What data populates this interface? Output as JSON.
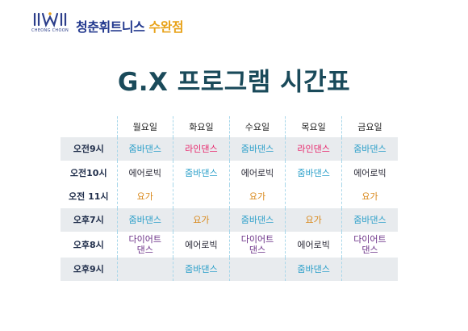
{
  "brand": {
    "logo_subtext": "CHEONG CHOON",
    "name_part1": "청춘휘트니스",
    "name_part2": "수완점",
    "colors": {
      "primary": "#243a8f",
      "accent": "#e8a31a"
    }
  },
  "title": "G.X 프로그램 시간표",
  "schedule": {
    "days": [
      "월요일",
      "화요일",
      "수요일",
      "목요일",
      "금요일"
    ],
    "rows": [
      {
        "time": "오전9시",
        "shaded": true,
        "classes": [
          {
            "name": "줌바댄스",
            "kind": "zumba"
          },
          {
            "name": "라인댄스",
            "kind": "latin"
          },
          {
            "name": "줌바댄스",
            "kind": "zumba"
          },
          {
            "name": "라인댄스",
            "kind": "latin"
          },
          {
            "name": "줌바댄스",
            "kind": "zumba"
          }
        ]
      },
      {
        "time": "오전10시",
        "shaded": false,
        "classes": [
          {
            "name": "에어로빅",
            "kind": "aero"
          },
          {
            "name": "줌바댄스",
            "kind": "zumba"
          },
          {
            "name": "에어로빅",
            "kind": "aero"
          },
          {
            "name": "줌바댄스",
            "kind": "zumba"
          },
          {
            "name": "에어로빅",
            "kind": "aero"
          }
        ]
      },
      {
        "time": "오전 11시",
        "shaded": false,
        "classes": [
          {
            "name": "요가",
            "kind": "yoga"
          },
          {
            "name": "",
            "kind": ""
          },
          {
            "name": "요가",
            "kind": "yoga"
          },
          {
            "name": "",
            "kind": ""
          },
          {
            "name": "요가",
            "kind": "yoga"
          }
        ]
      },
      {
        "time": "오후7시",
        "shaded": true,
        "classes": [
          {
            "name": "줌바댄스",
            "kind": "zumba"
          },
          {
            "name": "요가",
            "kind": "yoga"
          },
          {
            "name": "줌바댄스",
            "kind": "zumba"
          },
          {
            "name": "요가",
            "kind": "yoga"
          },
          {
            "name": "줌바댄스",
            "kind": "zumba"
          }
        ]
      },
      {
        "time": "오후8시",
        "shaded": false,
        "classes": [
          {
            "name": "다이어트\n댄스",
            "kind": "diet"
          },
          {
            "name": "에어로빅",
            "kind": "aero"
          },
          {
            "name": "다이어트\n댄스",
            "kind": "diet"
          },
          {
            "name": "에어로빅",
            "kind": "aero"
          },
          {
            "name": "다이어트\n댄스",
            "kind": "diet"
          }
        ]
      },
      {
        "time": "오후9시",
        "shaded": true,
        "classes": [
          {
            "name": "",
            "kind": ""
          },
          {
            "name": "줌바댄스",
            "kind": "zumba"
          },
          {
            "name": "",
            "kind": ""
          },
          {
            "name": "줌바댄스",
            "kind": "zumba"
          },
          {
            "name": "",
            "kind": ""
          }
        ]
      }
    ]
  },
  "class_colors": {
    "zumba": "#2a9fc9",
    "latin": "#e8256b",
    "aero": "#2d2d3a",
    "yoga": "#d9881a",
    "diet": "#6a2f86"
  }
}
